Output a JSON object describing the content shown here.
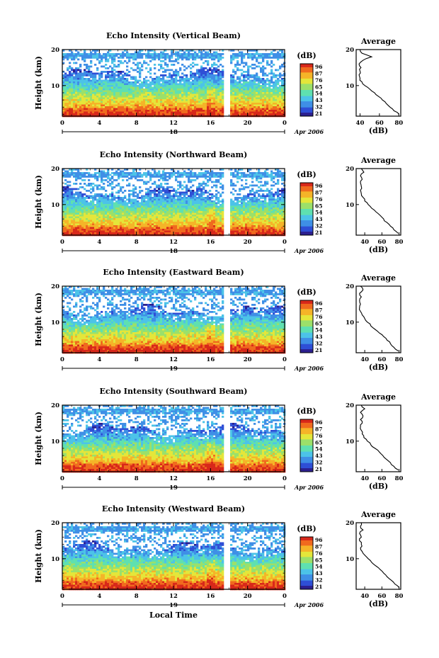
{
  "chart_data": [
    {
      "type": "heatmap",
      "title": "Echo Intensity (Vertical Beam)",
      "ylabel": "Height (km)",
      "xlabel": "",
      "x_ticks": [
        "0",
        "4",
        "8",
        "12",
        "16",
        "20",
        "0"
      ],
      "y_ticks": [
        "10",
        "20"
      ],
      "date_day": "18",
      "date_label": "Apr 2006",
      "xlim": [
        0,
        24
      ],
      "ylim": [
        1.5,
        20
      ],
      "colorbar": {
        "unit": "(dB)",
        "levels": [
          "96",
          "87",
          "76",
          "65",
          "54",
          "43",
          "32",
          "21"
        ]
      },
      "profile": {
        "title": "Average",
        "xlabel": "(dB)",
        "x_ticks": [
          "40",
          "60",
          "80"
        ],
        "y_ticks": [
          "10",
          "20"
        ],
        "xlim": [
          36,
          82
        ],
        "height_km": [
          2,
          3,
          4,
          5,
          6,
          7,
          8,
          9,
          10,
          11,
          12,
          13,
          14,
          15,
          16,
          17,
          18,
          19,
          20
        ],
        "values_db": [
          80,
          75,
          71,
          67,
          63,
          59,
          55,
          50,
          45,
          42,
          40,
          39,
          40,
          41,
          39,
          43,
          52,
          42,
          40
        ]
      }
    },
    {
      "type": "heatmap",
      "title": "Echo Intensity (Northward Beam)",
      "ylabel": "Height (km)",
      "xlabel": "",
      "x_ticks": [
        "0",
        "4",
        "8",
        "12",
        "16",
        "20",
        "0"
      ],
      "y_ticks": [
        "10",
        "20"
      ],
      "date_day": "18",
      "date_label": "Apr 2006",
      "xlim": [
        0,
        24
      ],
      "ylim": [
        1.5,
        20
      ],
      "colorbar": {
        "unit": "(dB)",
        "levels": [
          "96",
          "87",
          "76",
          "65",
          "54",
          "43",
          "32",
          "21"
        ]
      },
      "profile": {
        "title": "Average",
        "xlabel": "(dB)",
        "x_ticks": [
          "40",
          "60",
          "80"
        ],
        "y_ticks": [
          "10",
          "20"
        ],
        "xlim": [
          30,
          82
        ],
        "height_km": [
          2,
          3,
          4,
          5,
          6,
          7,
          8,
          9,
          10,
          11,
          12,
          13,
          14,
          15,
          16,
          17,
          18,
          19,
          20
        ],
        "values_db": [
          79,
          74,
          70,
          66,
          62,
          58,
          53,
          48,
          44,
          40,
          38,
          36,
          35,
          36,
          35,
          37,
          35,
          39,
          36
        ]
      }
    },
    {
      "type": "heatmap",
      "title": "Echo Intensity (Eastward Beam)",
      "ylabel": "Height (km)",
      "xlabel": "",
      "x_ticks": [
        "0",
        "4",
        "8",
        "12",
        "16",
        "20",
        "0"
      ],
      "y_ticks": [
        "10",
        "20"
      ],
      "date_day": "19",
      "date_label": "Apr 2006",
      "xlim": [
        0,
        24
      ],
      "ylim": [
        1.5,
        20
      ],
      "colorbar": {
        "unit": "(dB)",
        "levels": [
          "96",
          "87",
          "76",
          "65",
          "54",
          "43",
          "32",
          "21"
        ]
      },
      "profile": {
        "title": "Average",
        "xlabel": "(dB)",
        "x_ticks": [
          "40",
          "60",
          "80"
        ],
        "y_ticks": [
          "10",
          "20"
        ],
        "xlim": [
          30,
          82
        ],
        "height_km": [
          2,
          3,
          4,
          5,
          6,
          7,
          8,
          9,
          10,
          11,
          12,
          13,
          14,
          15,
          16,
          17,
          18,
          19,
          20
        ],
        "values_db": [
          79,
          74,
          70,
          66,
          62,
          57,
          52,
          47,
          43,
          40,
          37,
          35,
          34,
          35,
          34,
          36,
          34,
          38,
          35
        ]
      }
    },
    {
      "type": "heatmap",
      "title": "Echo Intensity (Southward Beam)",
      "ylabel": "Height (km)",
      "xlabel": "",
      "x_ticks": [
        "0",
        "4",
        "8",
        "12",
        "16",
        "20",
        "0"
      ],
      "y_ticks": [
        "10",
        "20"
      ],
      "date_day": "19",
      "date_label": "Apr 2006",
      "xlim": [
        0,
        24
      ],
      "ylim": [
        1.5,
        20
      ],
      "colorbar": {
        "unit": "(dB)",
        "levels": [
          "96",
          "87",
          "76",
          "65",
          "54",
          "43",
          "32",
          "21"
        ]
      },
      "profile": {
        "title": "Average",
        "xlabel": "(dB)",
        "x_ticks": [
          "40",
          "60",
          "80"
        ],
        "y_ticks": [
          "10",
          "20"
        ],
        "xlim": [
          30,
          82
        ],
        "height_km": [
          2,
          3,
          4,
          5,
          6,
          7,
          8,
          9,
          10,
          11,
          12,
          13,
          14,
          15,
          16,
          17,
          18,
          19,
          20
        ],
        "values_db": [
          79,
          74,
          70,
          65,
          61,
          57,
          52,
          47,
          43,
          39,
          37,
          36,
          35,
          37,
          35,
          38,
          35,
          40,
          36
        ]
      }
    },
    {
      "type": "heatmap",
      "title": "Echo Intensity (Westward Beam)",
      "ylabel": "Height (km)",
      "xlabel": "Local Time",
      "x_ticks": [
        "0",
        "4",
        "8",
        "12",
        "16",
        "20",
        "0"
      ],
      "y_ticks": [
        "10",
        "20"
      ],
      "date_day": "19",
      "date_label": "Apr 2006",
      "xlim": [
        0,
        24
      ],
      "ylim": [
        1.5,
        20
      ],
      "colorbar": {
        "unit": "(dB)",
        "levels": [
          "96",
          "87",
          "76",
          "65",
          "54",
          "43",
          "32",
          "21"
        ]
      },
      "profile": {
        "title": "Average",
        "xlabel": "(dB)",
        "x_ticks": [
          "40",
          "60",
          "80"
        ],
        "y_ticks": [
          "10",
          "20"
        ],
        "xlim": [
          30,
          82
        ],
        "height_km": [
          2,
          3,
          4,
          5,
          6,
          7,
          8,
          9,
          10,
          11,
          12,
          13,
          14,
          15,
          16,
          17,
          18,
          19,
          20
        ],
        "values_db": [
          80,
          75,
          71,
          66,
          62,
          58,
          53,
          48,
          44,
          40,
          37,
          35,
          36,
          34,
          36,
          34,
          38,
          35,
          36
        ]
      }
    }
  ],
  "colors": {
    "scale": [
      "#2b1f8f",
      "#2f4fd6",
      "#3f8fe6",
      "#4cc3e8",
      "#5fe0b0",
      "#9be06a",
      "#e4e63a",
      "#f5b428",
      "#f06a1e",
      "#d8281a"
    ],
    "gap": "#ffffff"
  }
}
